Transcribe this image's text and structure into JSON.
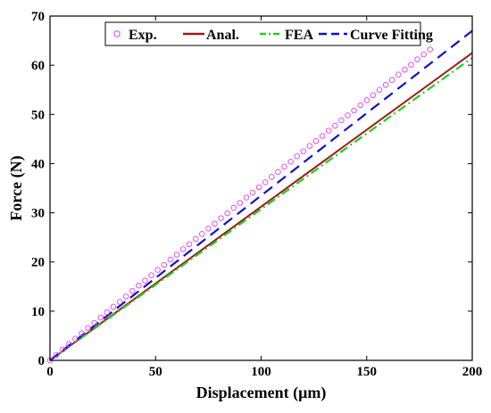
{
  "chart_data": {
    "type": "line",
    "xlabel": "Displacement (μm)",
    "ylabel": "Force (N)",
    "xlim": [
      0,
      200
    ],
    "ylim": [
      0,
      70
    ],
    "xticks": [
      0,
      50,
      100,
      150,
      200
    ],
    "yticks": [
      0,
      10,
      20,
      30,
      40,
      50,
      60,
      70
    ],
    "grid": false,
    "legend_position": "top",
    "legend_orientation": "horizontal",
    "series": [
      {
        "name": "Exp.",
        "style": "markers",
        "marker": "circle-open",
        "color": "#e040f0",
        "x": [
          0,
          3,
          6,
          9,
          12,
          15,
          18,
          21,
          24,
          27,
          30,
          33,
          36,
          39,
          42,
          45,
          48,
          51,
          54,
          57,
          60,
          63,
          66,
          69,
          72,
          75,
          78,
          81,
          84,
          87,
          90,
          93,
          96,
          99,
          102,
          105,
          108,
          111,
          114,
          117,
          120,
          123,
          126,
          129,
          132,
          135,
          138,
          141,
          144,
          147,
          150,
          153,
          156,
          159,
          162,
          165,
          168,
          171,
          174,
          177,
          180
        ],
        "y": [
          0.0,
          1.1,
          2.2,
          3.3,
          4.4,
          5.5,
          6.6,
          7.6,
          8.7,
          9.8,
          10.9,
          11.9,
          13.0,
          14.1,
          15.2,
          16.2,
          17.3,
          18.4,
          19.4,
          20.5,
          21.5,
          22.6,
          23.6,
          24.7,
          25.7,
          26.8,
          27.8,
          28.9,
          29.9,
          31.0,
          32.0,
          33.1,
          34.1,
          35.2,
          36.2,
          37.3,
          38.3,
          39.4,
          40.4,
          41.5,
          42.5,
          43.6,
          44.6,
          45.6,
          46.7,
          47.7,
          48.8,
          49.8,
          50.8,
          51.9,
          52.9,
          53.9,
          55.0,
          56.0,
          57.0,
          58.1,
          59.1,
          60.1,
          61.2,
          62.2,
          63.2
        ]
      },
      {
        "name": "Anal.",
        "style": "solid",
        "color": "#a01818",
        "x": [
          0,
          200
        ],
        "y": [
          0,
          62.5
        ]
      },
      {
        "name": "FEA",
        "style": "dash-dot",
        "color": "#22cc22",
        "x": [
          0,
          200
        ],
        "y": [
          0,
          61.5
        ]
      },
      {
        "name": "Curve Fitting",
        "style": "dashed",
        "color": "#1010c8",
        "x": [
          0,
          200
        ],
        "y": [
          0,
          67.0
        ]
      }
    ]
  }
}
